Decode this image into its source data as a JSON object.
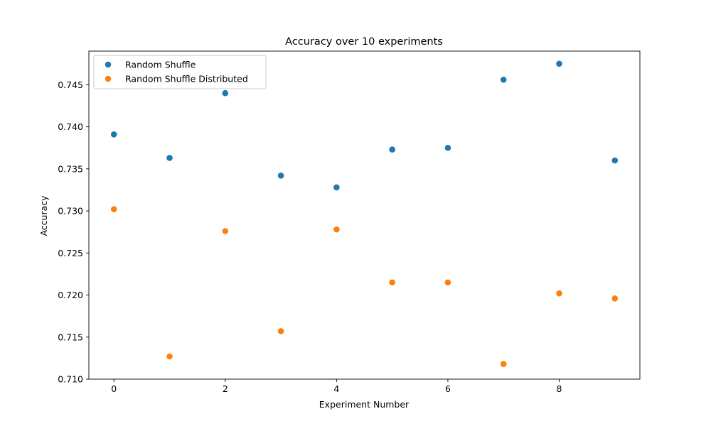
{
  "chart_data": {
    "type": "scatter",
    "title": "Accuracy over 10 experiments",
    "xlabel": "Experiment Number",
    "ylabel": "Accuracy",
    "xlim": [
      -0.45,
      9.45
    ],
    "ylim": [
      0.71,
      0.749
    ],
    "xticks": [
      0,
      2,
      4,
      6,
      8
    ],
    "xtick_labels": [
      "0",
      "2",
      "4",
      "6",
      "8"
    ],
    "yticks": [
      0.71,
      0.715,
      0.72,
      0.725,
      0.73,
      0.735,
      0.74,
      0.745
    ],
    "ytick_labels": [
      "0.710",
      "0.715",
      "0.720",
      "0.725",
      "0.730",
      "0.735",
      "0.740",
      "0.745"
    ],
    "grid": false,
    "legend_position": "top-left",
    "x": [
      0,
      1,
      2,
      3,
      4,
      5,
      6,
      7,
      8,
      9
    ],
    "series": [
      {
        "name": "Random Shuffle",
        "color": "#1f77b4",
        "values": [
          0.7391,
          0.7363,
          0.744,
          0.7342,
          0.7328,
          0.7373,
          0.7375,
          0.7456,
          0.7475,
          0.736
        ]
      },
      {
        "name": "Random Shuffle Distributed",
        "color": "#ff7f0e",
        "values": [
          0.7302,
          0.7127,
          0.7276,
          0.7157,
          0.7278,
          0.7215,
          0.7215,
          0.7118,
          0.7202,
          0.7196
        ]
      }
    ]
  }
}
